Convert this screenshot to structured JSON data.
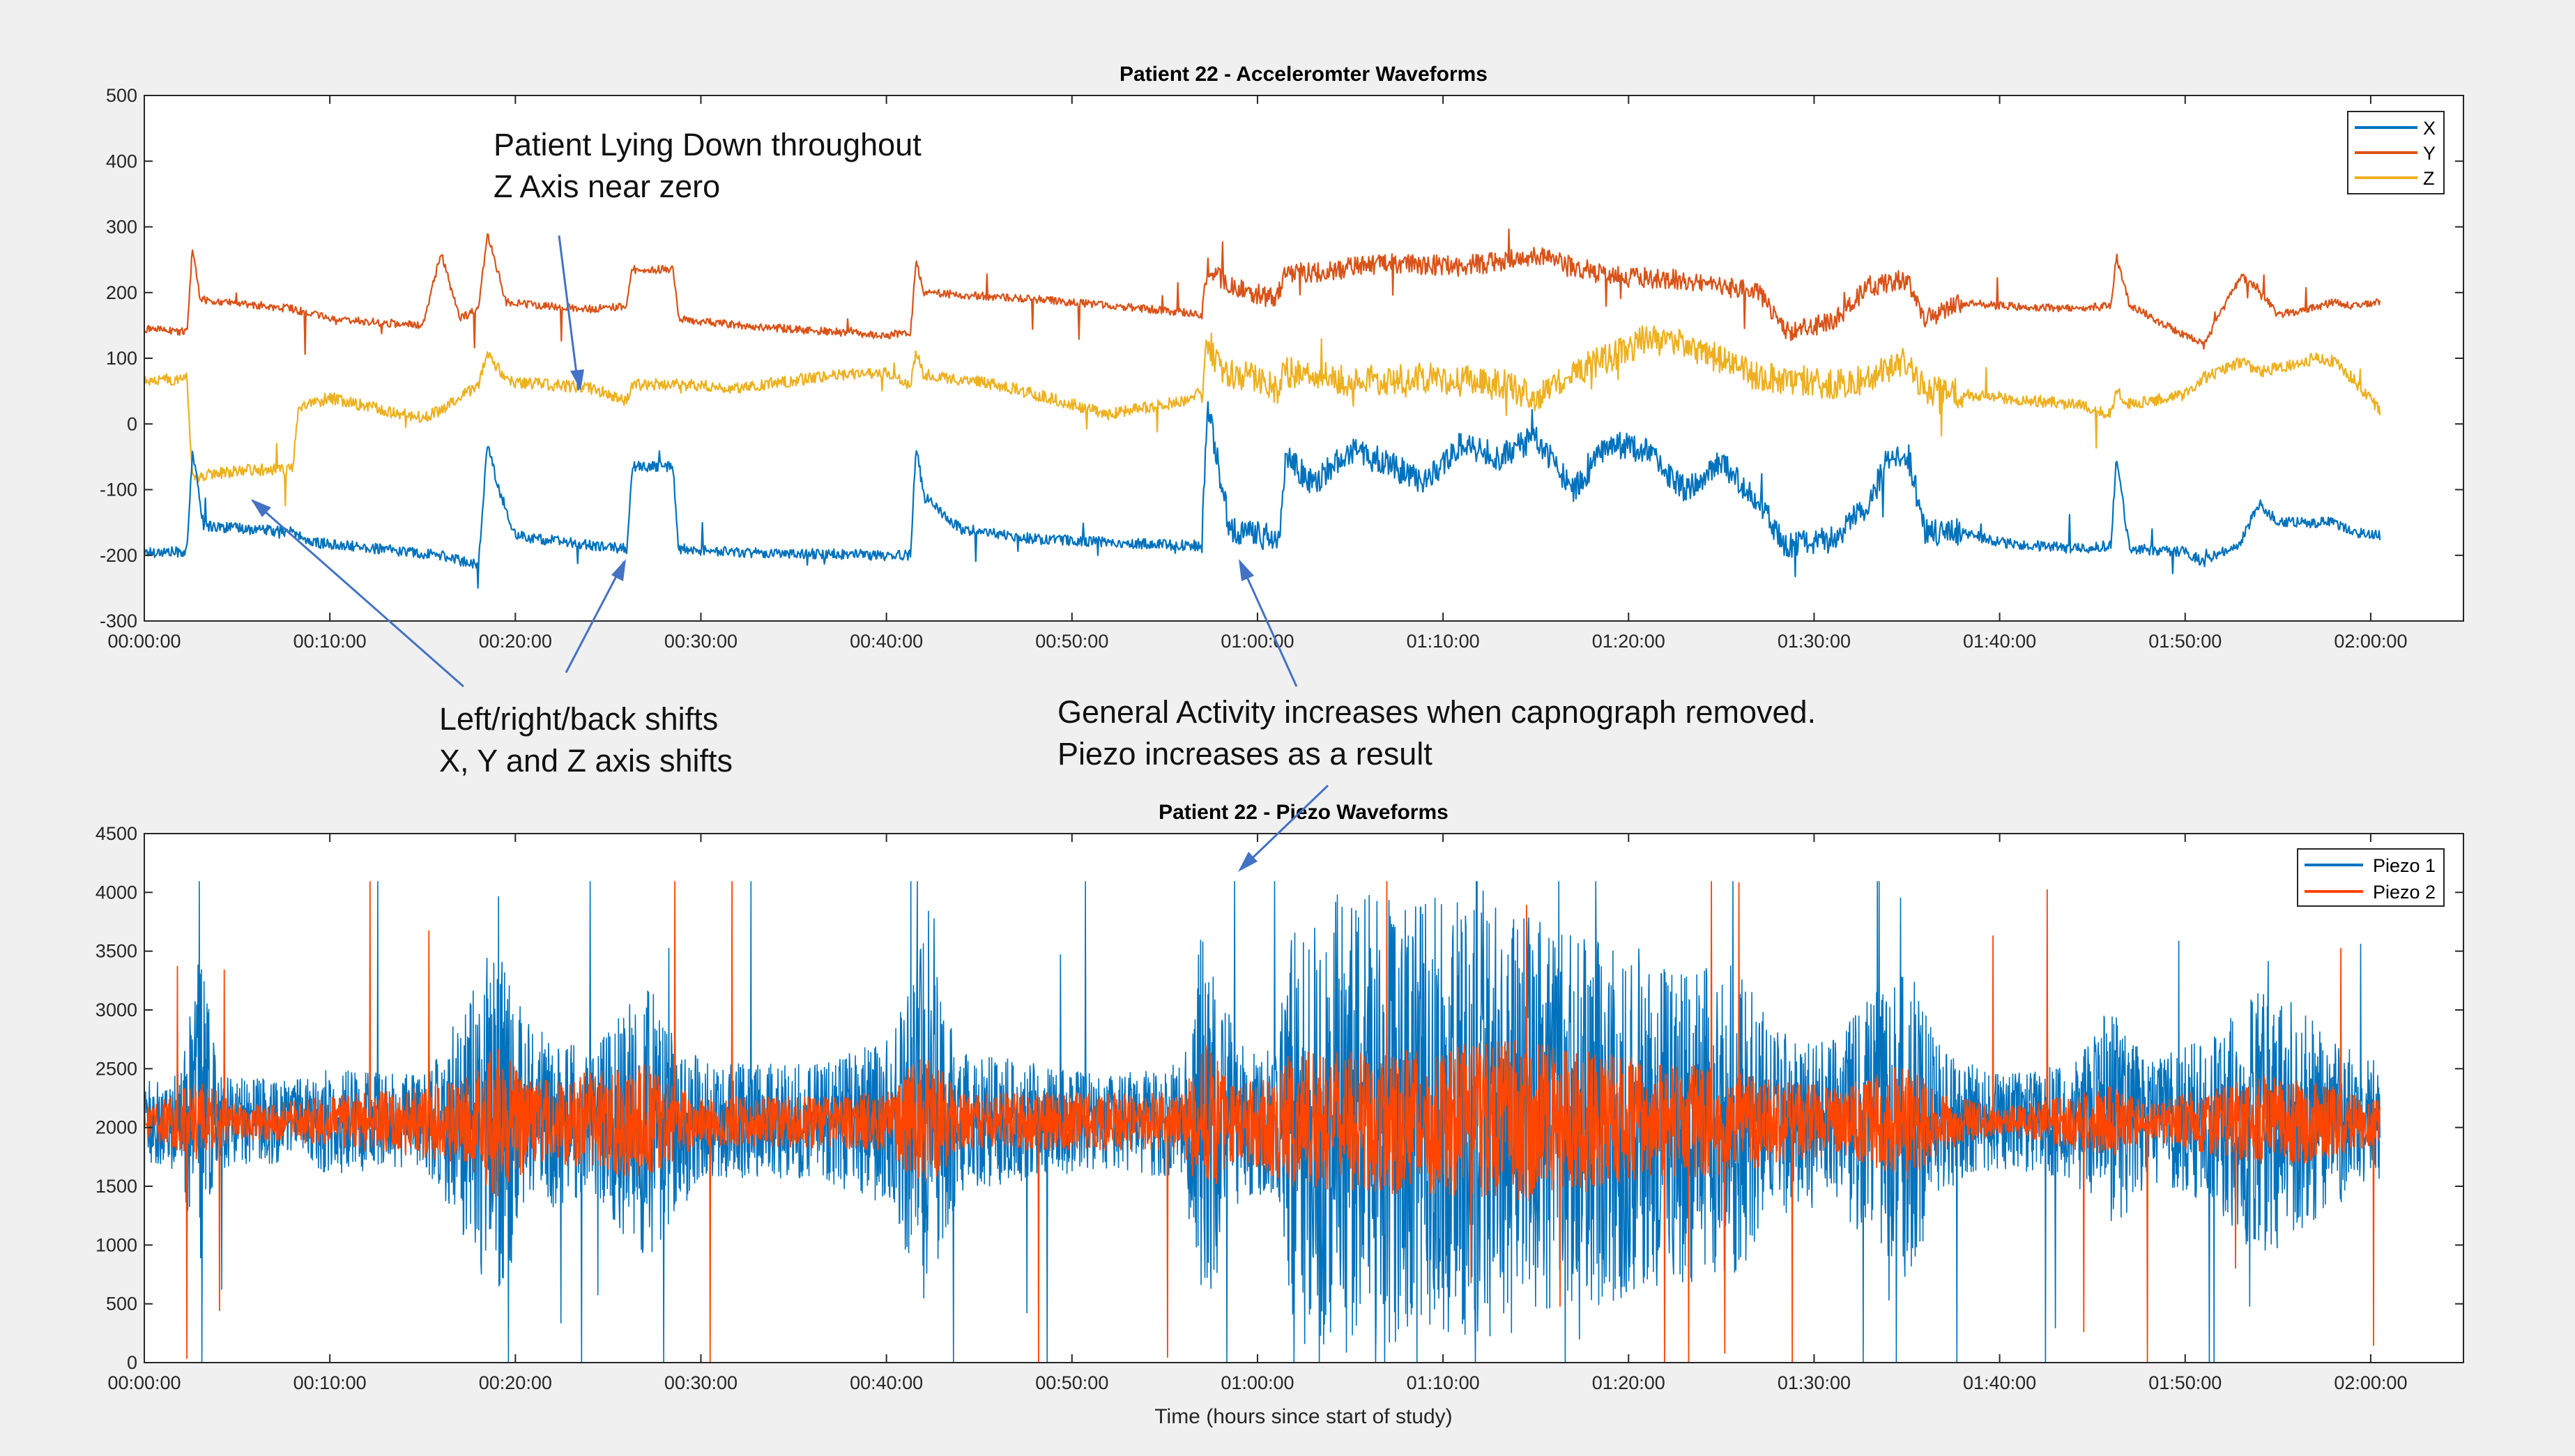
{
  "colors": {
    "x": "#0072BD",
    "y": "#D95319",
    "z": "#EDB120",
    "piezo1": "#0072BD",
    "piezo2": "#FF4500",
    "axis": "#262626",
    "grid": "#e6e6e6",
    "figure_bg": "#f0f0f0",
    "plot_bg": "#ffffff",
    "annotation": "#4472C4"
  },
  "annotations": {
    "lying_down": [
      "Patient Lying Down throughout",
      "Z Axis near zero"
    ],
    "shifts": [
      "Left/right/back shifts",
      "X, Y and Z axis shifts"
    ],
    "activity": [
      "General Activity increases when capnograph removed.",
      "Piezo increases as a result"
    ]
  },
  "chart_data": [
    {
      "type": "line",
      "title": "Patient 22 - Acceleromter Waveforms",
      "xlabel": "",
      "ylabel": "",
      "x_unit": "minutes since start of study",
      "xlim": [
        0,
        125
      ],
      "ylim": [
        -300,
        500
      ],
      "xticks": [
        0,
        10,
        20,
        30,
        40,
        50,
        60,
        70,
        80,
        90,
        100,
        110,
        120
      ],
      "xtick_labels": [
        "00:00:00",
        "00:10:00",
        "00:20:00",
        "00:30:00",
        "00:40:00",
        "00:50:00",
        "01:00:00",
        "01:10:00",
        "01:20:00",
        "01:30:00",
        "01:40:00",
        "01:50:00",
        "02:00:00"
      ],
      "yticks": [
        -300,
        -200,
        -100,
        0,
        100,
        200,
        300,
        400,
        500
      ],
      "legend": "top-right",
      "series": [
        {
          "name": "X",
          "points": [
            [
              0,
              -195
            ],
            [
              2.3,
              -195
            ],
            [
              2.6,
              -40
            ],
            [
              3.2,
              -155
            ],
            [
              8,
              -165
            ],
            [
              9,
              -180
            ],
            [
              16,
              -200
            ],
            [
              18,
              -215
            ],
            [
              18.5,
              -30
            ],
            [
              19,
              -90
            ],
            [
              20,
              -170
            ],
            [
              24,
              -185
            ],
            [
              26,
              -190
            ],
            [
              26.3,
              -65
            ],
            [
              28.5,
              -65
            ],
            [
              28.8,
              -190
            ],
            [
              32,
              -195
            ],
            [
              40,
              -200
            ],
            [
              41.3,
              -200
            ],
            [
              41.6,
              -30
            ],
            [
              42,
              -110
            ],
            [
              44,
              -160
            ],
            [
              48,
              -175
            ],
            [
              56,
              -185
            ],
            [
              57,
              -185
            ],
            [
              57.3,
              30
            ],
            [
              58,
              -80
            ],
            [
              58.5,
              -160
            ],
            [
              61,
              -175
            ],
            [
              61.2,
              -175
            ],
            [
              61.5,
              -50
            ],
            [
              63,
              -90
            ],
            [
              65,
              -40
            ],
            [
              67,
              -60
            ],
            [
              69,
              -90
            ],
            [
              71,
              -30
            ],
            [
              73,
              -50
            ],
            [
              75,
              -20
            ],
            [
              77,
              -100
            ],
            [
              79,
              -30
            ],
            [
              81,
              -40
            ],
            [
              83,
              -100
            ],
            [
              85,
              -60
            ],
            [
              87,
              -120
            ],
            [
              88.5,
              -185
            ],
            [
              91,
              -175
            ],
            [
              93,
              -120
            ],
            [
              94,
              -50
            ],
            [
              95,
              -40
            ],
            [
              96,
              -165
            ],
            [
              98,
              -165
            ],
            [
              100,
              -180
            ],
            [
              104,
              -190
            ],
            [
              106,
              -185
            ],
            [
              106.3,
              -50
            ],
            [
              107,
              -190
            ],
            [
              110,
              -195
            ],
            [
              111,
              -210
            ],
            [
              113,
              -180
            ],
            [
              114,
              -120
            ],
            [
              115,
              -150
            ],
            [
              118,
              -150
            ],
            [
              119,
              -165
            ],
            [
              120.5,
              -170
            ]
          ]
        },
        {
          "name": "Y",
          "points": [
            [
              0,
              145
            ],
            [
              2.3,
              140
            ],
            [
              2.6,
              270
            ],
            [
              3,
              190
            ],
            [
              8,
              175
            ],
            [
              10,
              160
            ],
            [
              15,
              150
            ],
            [
              16,
              260
            ],
            [
              17,
              160
            ],
            [
              18,
              175
            ],
            [
              18.5,
              290
            ],
            [
              19.5,
              185
            ],
            [
              24,
              175
            ],
            [
              26,
              180
            ],
            [
              26.3,
              235
            ],
            [
              28.5,
              235
            ],
            [
              28.8,
              160
            ],
            [
              32,
              150
            ],
            [
              40,
              135
            ],
            [
              41.3,
              140
            ],
            [
              41.6,
              250
            ],
            [
              42,
              200
            ],
            [
              48,
              190
            ],
            [
              56,
              170
            ],
            [
              57,
              165
            ],
            [
              57.3,
              240
            ],
            [
              58.5,
              210
            ],
            [
              61,
              190
            ],
            [
              61.5,
              230
            ],
            [
              63,
              230
            ],
            [
              67,
              245
            ],
            [
              71,
              240
            ],
            [
              75,
              255
            ],
            [
              79,
              225
            ],
            [
              83,
              220
            ],
            [
              87,
              200
            ],
            [
              88.5,
              140
            ],
            [
              91,
              155
            ],
            [
              93,
              210
            ],
            [
              95,
              220
            ],
            [
              96,
              160
            ],
            [
              98,
              185
            ],
            [
              100,
              180
            ],
            [
              104,
              175
            ],
            [
              106,
              180
            ],
            [
              106.3,
              255
            ],
            [
              107,
              180
            ],
            [
              110,
              135
            ],
            [
              111,
              120
            ],
            [
              113,
              225
            ],
            [
              114,
              205
            ],
            [
              115,
              165
            ],
            [
              118,
              185
            ],
            [
              119,
              180
            ],
            [
              120.5,
              185
            ]
          ]
        },
        {
          "name": "Z",
          "points": [
            [
              0,
              65
            ],
            [
              2.3,
              70
            ],
            [
              2.6,
              -85
            ],
            [
              3.5,
              -75
            ],
            [
              6,
              -70
            ],
            [
              8,
              -70
            ],
            [
              8.3,
              25
            ],
            [
              10,
              40
            ],
            [
              13,
              20
            ],
            [
              15,
              10
            ],
            [
              16,
              20
            ],
            [
              18,
              60
            ],
            [
              18.5,
              110
            ],
            [
              19.5,
              65
            ],
            [
              24,
              55
            ],
            [
              26,
              35
            ],
            [
              26.3,
              60
            ],
            [
              28.5,
              60
            ],
            [
              32,
              55
            ],
            [
              36,
              70
            ],
            [
              40,
              80
            ],
            [
              41.3,
              60
            ],
            [
              41.6,
              110
            ],
            [
              42,
              75
            ],
            [
              46,
              60
            ],
            [
              50,
              30
            ],
            [
              52,
              15
            ],
            [
              56,
              35
            ],
            [
              57,
              50
            ],
            [
              57.3,
              130
            ],
            [
              58,
              80
            ],
            [
              60,
              70
            ],
            [
              61,
              50
            ],
            [
              61.5,
              80
            ],
            [
              65,
              65
            ],
            [
              69,
              70
            ],
            [
              73,
              60
            ],
            [
              75,
              40
            ],
            [
              77,
              80
            ],
            [
              79,
              100
            ],
            [
              81,
              130
            ],
            [
              83,
              120
            ],
            [
              85,
              100
            ],
            [
              87,
              70
            ],
            [
              88.5,
              70
            ],
            [
              91,
              60
            ],
            [
              93,
              70
            ],
            [
              95,
              95
            ],
            [
              96,
              50
            ],
            [
              100,
              40
            ],
            [
              104,
              30
            ],
            [
              106,
              15
            ],
            [
              106.3,
              50
            ],
            [
              107,
              30
            ],
            [
              110,
              45
            ],
            [
              111,
              70
            ],
            [
              113,
              95
            ],
            [
              114,
              80
            ],
            [
              115,
              85
            ],
            [
              117,
              100
            ],
            [
              118,
              95
            ],
            [
              119,
              70
            ],
            [
              120.5,
              20
            ]
          ]
        }
      ]
    },
    {
      "type": "line",
      "title": "Patient 22 - Piezo Waveforms",
      "xlabel": "Time (hours since start of study)",
      "ylabel": "",
      "x_unit": "minutes since start of study",
      "xlim": [
        0,
        125
      ],
      "ylim": [
        0,
        4500
      ],
      "xticks": [
        0,
        10,
        20,
        30,
        40,
        50,
        60,
        70,
        80,
        90,
        100,
        110,
        120
      ],
      "xtick_labels": [
        "00:00:00",
        "00:10:00",
        "00:20:00",
        "00:30:00",
        "00:40:00",
        "00:50:00",
        "01:00:00",
        "01:10:00",
        "01:20:00",
        "01:30:00",
        "01:40:00",
        "01:50:00",
        "02:00:00"
      ],
      "yticks": [
        0,
        500,
        1000,
        1500,
        2000,
        2500,
        3000,
        3500,
        4000,
        4500
      ],
      "legend": "top-right",
      "baseline": 2050,
      "series": [
        {
          "name": "Piezo 1",
          "activity_envelope": [
            [
              0,
              350
            ],
            [
              2,
              450
            ],
            [
              3,
              1500
            ],
            [
              4,
              400
            ],
            [
              8,
              350
            ],
            [
              10,
              450
            ],
            [
              15,
              400
            ],
            [
              17,
              900
            ],
            [
              19,
              1600
            ],
            [
              21,
              800
            ],
            [
              24,
              600
            ],
            [
              27,
              1200
            ],
            [
              30,
              500
            ],
            [
              36,
              500
            ],
            [
              40,
              700
            ],
            [
              42,
              1600
            ],
            [
              44,
              600
            ],
            [
              48,
              500
            ],
            [
              52,
              400
            ],
            [
              56,
              500
            ],
            [
              57,
              1700
            ],
            [
              59,
              700
            ],
            [
              61,
              600
            ],
            [
              62,
              1900
            ],
            [
              66,
              2000
            ],
            [
              70,
              1900
            ],
            [
              74,
              1800
            ],
            [
              78,
              1600
            ],
            [
              82,
              1400
            ],
            [
              86,
              1300
            ],
            [
              88,
              800
            ],
            [
              91,
              700
            ],
            [
              95,
              1400
            ],
            [
              97,
              600
            ],
            [
              100,
              400
            ],
            [
              104,
              500
            ],
            [
              106,
              1000
            ],
            [
              108,
              500
            ],
            [
              112,
              800
            ],
            [
              114,
              1200
            ],
            [
              117,
              900
            ],
            [
              119,
              600
            ],
            [
              120.5,
              500
            ]
          ]
        },
        {
          "name": "Piezo 2",
          "activity_envelope": [
            [
              0,
              120
            ],
            [
              3,
              350
            ],
            [
              5,
              150
            ],
            [
              8,
              180
            ],
            [
              17,
              350
            ],
            [
              19,
              650
            ],
            [
              21,
              350
            ],
            [
              27,
              500
            ],
            [
              30,
              200
            ],
            [
              40,
              250
            ],
            [
              42,
              600
            ],
            [
              44,
              250
            ],
            [
              56,
              250
            ],
            [
              57,
              700
            ],
            [
              59,
              300
            ],
            [
              62,
              600
            ],
            [
              66,
              600
            ],
            [
              70,
              650
            ],
            [
              74,
              700
            ],
            [
              78,
              600
            ],
            [
              82,
              500
            ],
            [
              86,
              450
            ],
            [
              88,
              350
            ],
            [
              91,
              300
            ],
            [
              95,
              500
            ],
            [
              97,
              250
            ],
            [
              100,
              120
            ],
            [
              106,
              300
            ],
            [
              108,
              150
            ],
            [
              114,
              400
            ],
            [
              117,
              350
            ],
            [
              120.5,
              200
            ]
          ]
        }
      ]
    }
  ]
}
